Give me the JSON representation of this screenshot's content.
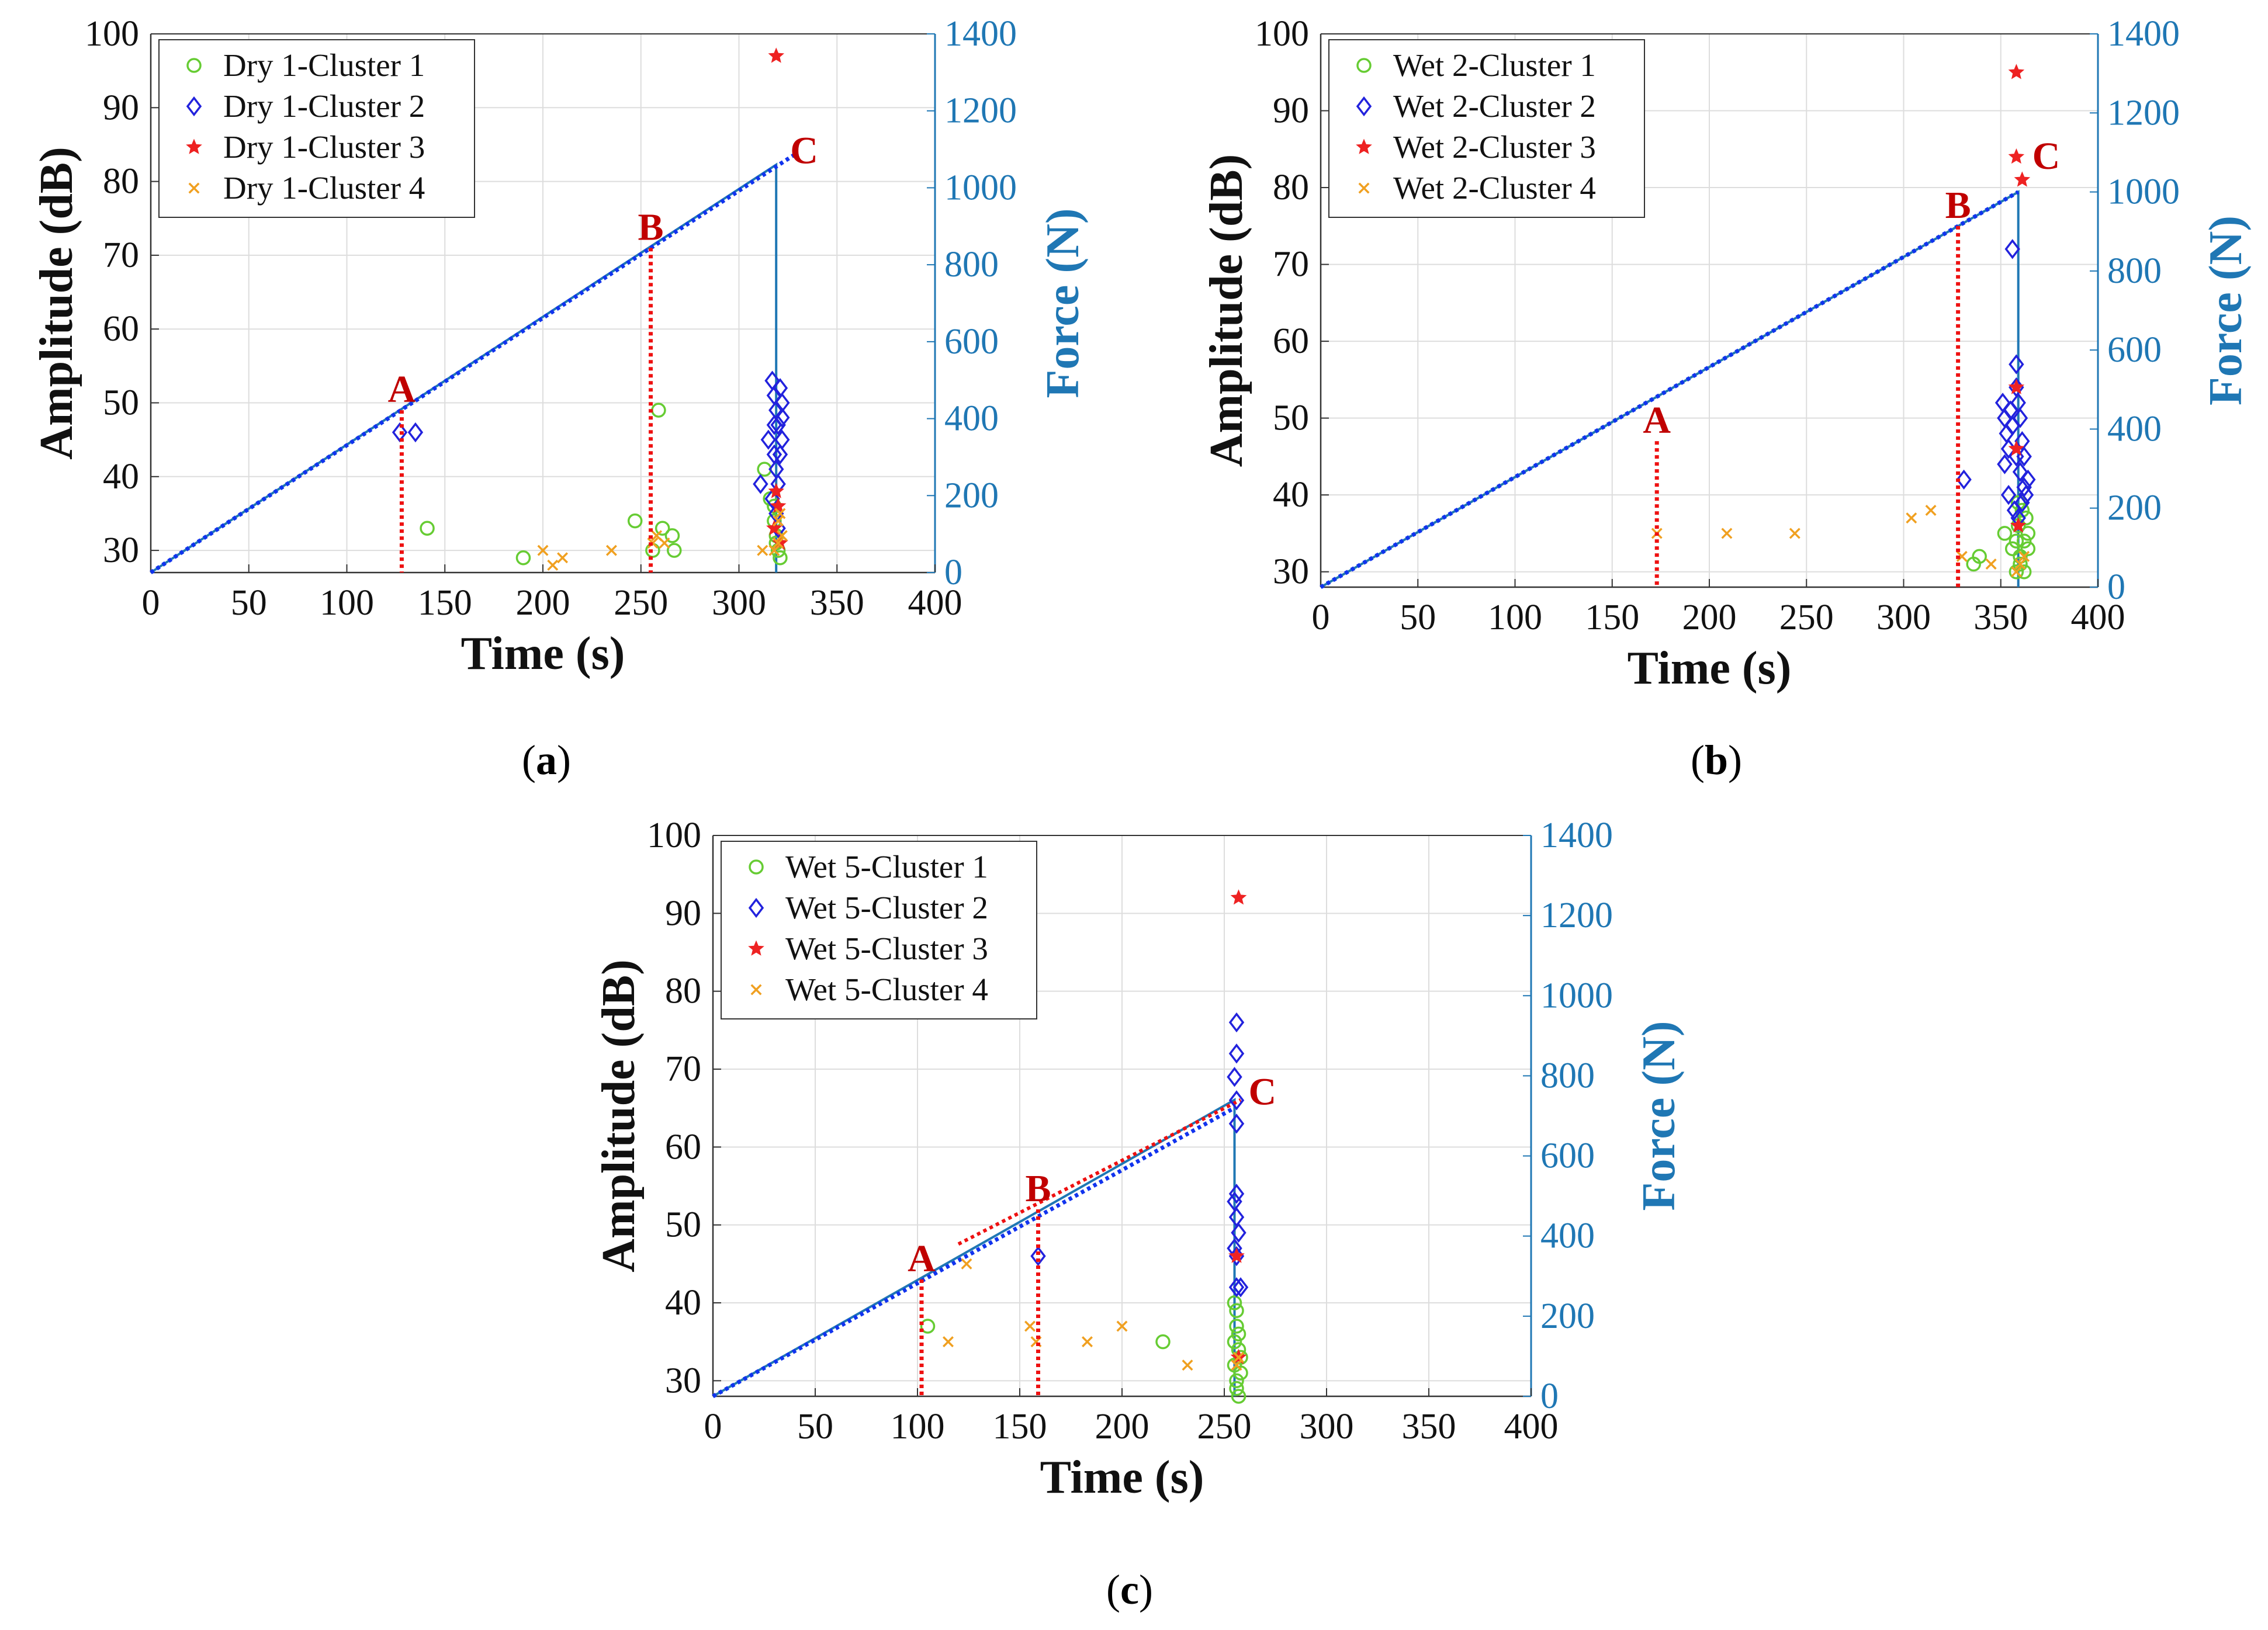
{
  "colors": {
    "cluster1": "#66cc33",
    "cluster2": "#2222dd",
    "cluster3": "#ee2222",
    "cluster4": "#f0a020",
    "force": "#1f77b4",
    "fitline": "#1133ee",
    "marker_line": "#ee1111",
    "marker_text": "#c00000",
    "grid": "#dddddd"
  },
  "chart_data": [
    {
      "id": "a",
      "type": "scatter",
      "caption": "a",
      "xlabel": "Time (s)",
      "ylabel": "Amplitude (dB)",
      "y2label": "Force (N)",
      "xlim": [
        0,
        400
      ],
      "ylim": [
        27,
        100
      ],
      "y2lim": [
        0,
        1400
      ],
      "xticks": [
        "0",
        "50",
        "100",
        "150",
        "200",
        "250",
        "300",
        "350",
        "400"
      ],
      "yticks": [
        "30",
        "40",
        "50",
        "60",
        "70",
        "80",
        "90",
        "100"
      ],
      "y2ticks": [
        "0",
        "200",
        "400",
        "600",
        "800",
        "1000",
        "1200",
        "1400"
      ],
      "legend_position": "top-left",
      "legend": [
        "Dry 1-Cluster 1",
        "Dry 1-Cluster 2",
        "Dry 1-Cluster 3",
        "Dry 1-Cluster 4"
      ],
      "force_line": {
        "x": [
          0,
          319,
          319,
          319
        ],
        "y": [
          0,
          1060,
          1060,
          0
        ]
      },
      "fit_line": {
        "x": [
          0,
          328
        ],
        "y": [
          0,
          1085
        ]
      },
      "markers": [
        {
          "label": "A",
          "x": 128,
          "amp": 49
        },
        {
          "label": "B",
          "x": 255,
          "amp": 71
        },
        {
          "label": "C",
          "x": 319,
          "amp": 82
        }
      ],
      "series": [
        {
          "name": "Cluster 1",
          "points": [
            [
              141,
              33
            ],
            [
              190,
              29
            ],
            [
              247,
              34
            ],
            [
              259,
              49
            ],
            [
              256,
              30
            ],
            [
              261,
              33
            ],
            [
              266,
              32
            ],
            [
              267,
              30
            ],
            [
              313,
              41
            ],
            [
              316,
              37
            ],
            [
              318,
              34
            ],
            [
              319,
              32
            ],
            [
              320,
              30
            ],
            [
              321,
              29
            ],
            [
              318,
              36
            ],
            [
              319,
              31
            ]
          ]
        },
        {
          "name": "Cluster 2",
          "points": [
            [
              127,
              46
            ],
            [
              135,
              46
            ],
            [
              311,
              39
            ],
            [
              315,
              45
            ],
            [
              317,
              53
            ],
            [
              318,
              51
            ],
            [
              319,
              49
            ],
            [
              320,
              47
            ],
            [
              321,
              52
            ],
            [
              322,
              45
            ],
            [
              318,
              43
            ],
            [
              319,
              41
            ],
            [
              320,
              39
            ],
            [
              317,
              37
            ],
            [
              321,
              43
            ],
            [
              322,
              48
            ],
            [
              319,
              35
            ],
            [
              320,
              33
            ],
            [
              318,
              47
            ],
            [
              322,
              50
            ]
          ]
        },
        {
          "name": "Cluster 3",
          "points": [
            [
              319,
              97
            ],
            [
              319,
              38
            ],
            [
              320,
              36
            ],
            [
              318,
              33
            ],
            [
              321,
              31
            ]
          ]
        },
        {
          "name": "Cluster 4",
          "points": [
            [
              200,
              30
            ],
            [
              205,
              28
            ],
            [
              210,
              29
            ],
            [
              235,
              30
            ],
            [
              256,
              31
            ],
            [
              258,
              32
            ],
            [
              262,
              31
            ],
            [
              312,
              30
            ],
            [
              318,
              30
            ],
            [
              320,
              31
            ],
            [
              322,
              32
            ],
            [
              320,
              34
            ],
            [
              321,
              35
            ]
          ]
        }
      ]
    },
    {
      "id": "b",
      "type": "scatter",
      "caption": "b",
      "xlabel": "Time (s)",
      "ylabel": "Amplitude (dB)",
      "y2label": "Force (N)",
      "xlim": [
        0,
        400
      ],
      "ylim": [
        28,
        100
      ],
      "y2lim": [
        0,
        1400
      ],
      "xticks": [
        "0",
        "50",
        "100",
        "150",
        "200",
        "250",
        "300",
        "350",
        "400"
      ],
      "yticks": [
        "30",
        "40",
        "50",
        "60",
        "70",
        "80",
        "90",
        "100"
      ],
      "y2ticks": [
        "0",
        "200",
        "400",
        "600",
        "800",
        "1000",
        "1200",
        "1400"
      ],
      "legend_position": "top-left",
      "legend": [
        "Wet 2-Cluster 1",
        "Wet 2-Cluster 2",
        "Wet 2-Cluster 3",
        "Wet 2-Cluster 4"
      ],
      "force_line": {
        "x": [
          0,
          359,
          359,
          359
        ],
        "y": [
          0,
          1000,
          1000,
          0
        ]
      },
      "fit_line": {
        "x": [
          0,
          359
        ],
        "y": [
          0,
          1000
        ]
      },
      "markers": [
        {
          "label": "A",
          "x": 173,
          "amp": 47
        },
        {
          "label": "B",
          "x": 328,
          "amp": 75
        },
        {
          "label": "C",
          "x": 359,
          "amp": 82
        }
      ],
      "series": [
        {
          "name": "Cluster 1",
          "points": [
            [
              336,
              31
            ],
            [
              339,
              32
            ],
            [
              352,
              35
            ],
            [
              356,
              33
            ],
            [
              358,
              30
            ],
            [
              360,
              31
            ],
            [
              362,
              34
            ],
            [
              359,
              36
            ],
            [
              361,
              38
            ],
            [
              363,
              37
            ],
            [
              364,
              33
            ],
            [
              360,
              32
            ],
            [
              358,
              34
            ],
            [
              362,
              30
            ],
            [
              364,
              35
            ],
            [
              359,
              39
            ]
          ]
        },
        {
          "name": "Cluster 2",
          "points": [
            [
              331,
              42
            ],
            [
              351,
              52
            ],
            [
              352,
              50
            ],
            [
              353,
              48
            ],
            [
              354,
              46
            ],
            [
              352,
              44
            ],
            [
              355,
              51
            ],
            [
              356,
              49
            ],
            [
              354,
              40
            ],
            [
              356,
              72
            ],
            [
              358,
              57
            ],
            [
              358,
              54
            ],
            [
              359,
              52
            ],
            [
              360,
              50
            ],
            [
              361,
              47
            ],
            [
              362,
              45
            ],
            [
              360,
              43
            ],
            [
              362,
              41
            ],
            [
              364,
              42
            ],
            [
              357,
              38
            ],
            [
              361,
              39
            ],
            [
              359,
              37
            ],
            [
              358,
              45
            ],
            [
              363,
              40
            ]
          ]
        },
        {
          "name": "Cluster 3",
          "points": [
            [
              358,
              95
            ],
            [
              358,
              84
            ],
            [
              361,
              81
            ],
            [
              358,
              54
            ],
            [
              358,
              46
            ],
            [
              359,
              36
            ]
          ]
        },
        {
          "name": "Cluster 4",
          "points": [
            [
              173,
              35
            ],
            [
              209,
              35
            ],
            [
              244,
              35
            ],
            [
              304,
              37
            ],
            [
              314,
              38
            ],
            [
              330,
              32
            ],
            [
              345,
              31
            ],
            [
              358,
              30
            ],
            [
              360,
              31
            ],
            [
              362,
              32
            ]
          ]
        }
      ]
    },
    {
      "id": "c",
      "type": "scatter",
      "caption": "c",
      "xlabel": "Time (s)",
      "ylabel": "Amplitude (dB)",
      "y2label": "Force (N)",
      "xlim": [
        0,
        400
      ],
      "ylim": [
        28,
        100
      ],
      "y2lim": [
        0,
        1400
      ],
      "xticks": [
        "0",
        "50",
        "100",
        "150",
        "200",
        "250",
        "300",
        "350",
        "400"
      ],
      "yticks": [
        "30",
        "40",
        "50",
        "60",
        "70",
        "80",
        "90",
        "100"
      ],
      "y2ticks": [
        "0",
        "200",
        "400",
        "600",
        "800",
        "1000",
        "1200",
        "1400"
      ],
      "legend_position": "top-left",
      "legend": [
        "Wet 5-Cluster 1",
        "Wet 5-Cluster 2",
        "Wet 5-Cluster 3",
        "Wet 5-Cluster 4"
      ],
      "force_line": {
        "x": [
          0,
          255,
          255,
          255
        ],
        "y": [
          0,
          740,
          740,
          0
        ]
      },
      "fit_line": {
        "x": [
          0,
          255
        ],
        "y": [
          0,
          720
        ]
      },
      "red_fit": {
        "x": [
          120,
          258
        ],
        "y": [
          380,
          740
        ]
      },
      "markers": [
        {
          "label": "A",
          "x": 102,
          "amp": 43
        },
        {
          "label": "B",
          "x": 159,
          "amp": 52
        },
        {
          "label": "C",
          "x": 255,
          "amp": 65
        }
      ],
      "series": [
        {
          "name": "Cluster 1",
          "points": [
            [
              105,
              37
            ],
            [
              220,
              35
            ],
            [
              255,
              40
            ],
            [
              256,
              37
            ],
            [
              257,
              34
            ],
            [
              255,
              32
            ],
            [
              256,
              30
            ],
            [
              257,
              28
            ],
            [
              258,
              31
            ],
            [
              255,
              35
            ],
            [
              256,
              39
            ],
            [
              257,
              36
            ],
            [
              258,
              33
            ],
            [
              256,
              29
            ]
          ]
        },
        {
          "name": "Cluster 2",
          "points": [
            [
              159,
              46
            ],
            [
              256,
              76
            ],
            [
              256,
              72
            ],
            [
              255,
              69
            ],
            [
              256,
              66
            ],
            [
              256,
              63
            ],
            [
              256,
              54
            ],
            [
              255,
              53
            ],
            [
              256,
              51
            ],
            [
              257,
              49
            ],
            [
              255,
              47
            ],
            [
              256,
              46
            ],
            [
              256,
              42
            ],
            [
              258,
              42
            ]
          ]
        },
        {
          "name": "Cluster 3",
          "points": [
            [
              257,
              92
            ],
            [
              256,
              46
            ],
            [
              257,
              33
            ]
          ]
        },
        {
          "name": "Cluster 4",
          "points": [
            [
              124,
              45
            ],
            [
              115,
              35
            ],
            [
              155,
              37
            ],
            [
              158,
              35
            ],
            [
              183,
              35
            ],
            [
              200,
              37
            ],
            [
              232,
              32
            ],
            [
              257,
              33
            ],
            [
              256,
              32
            ]
          ]
        }
      ]
    }
  ]
}
